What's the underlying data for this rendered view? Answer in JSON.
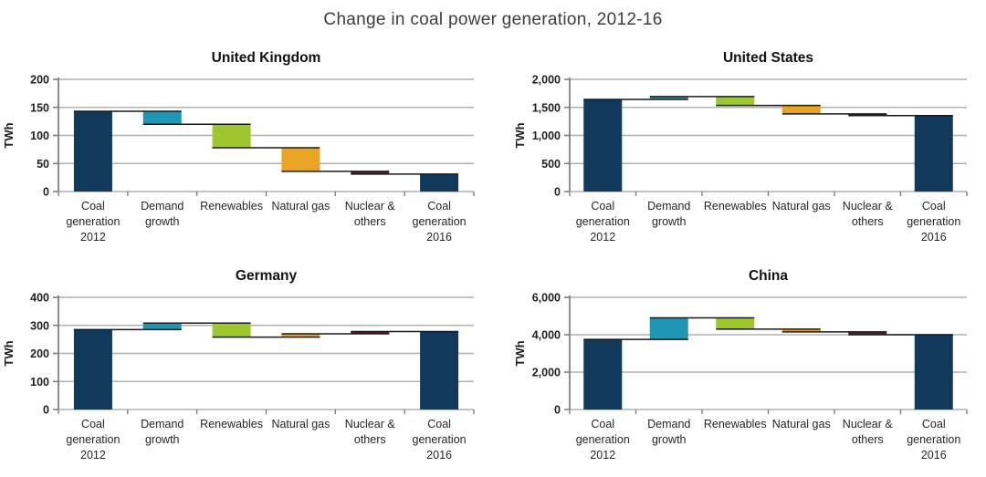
{
  "page_title": "Change in coal power generation, 2012-16",
  "unit": "TWh",
  "categories": [
    "Coal generation 2012",
    "Demand growth",
    "Renewables",
    "Natural gas",
    "Nuclear & others",
    "Coal generation 2016"
  ],
  "category_label_lines": [
    [
      "Coal",
      "generation",
      "2012"
    ],
    [
      "Demand",
      "growth"
    ],
    [
      "Renewables"
    ],
    [
      "Natural gas"
    ],
    [
      "Nuclear &",
      "others"
    ],
    [
      "Coal",
      "generation",
      "2016"
    ]
  ],
  "colors": {
    "coal": "#11395C",
    "demand": "#1E96B4",
    "renewables": "#9EC62E",
    "natural_gas": "#E9A424",
    "nuclear": "#631A26",
    "grid": "#B0B0B0",
    "axis": "#808080",
    "connector": "#1A1A1A",
    "tick_text": "#1F1F1F",
    "category_text": "#262626",
    "chart_title_text": "#111111"
  },
  "chart_data": [
    {
      "type": "waterfall",
      "title": "United Kingdom",
      "ylabel": "TWh",
      "ylim": [
        0,
        200
      ],
      "yticks": [
        {
          "v": 0,
          "label": "0"
        },
        {
          "v": 50,
          "label": "50"
        },
        {
          "v": 100,
          "label": "100"
        },
        {
          "v": 150,
          "label": "150"
        },
        {
          "v": 200,
          "label": "200"
        }
      ],
      "steps": [
        {
          "label": "Coal generation 2012",
          "start": 0,
          "end": 143,
          "color": "coal"
        },
        {
          "label": "Demand growth",
          "start": 143,
          "end": 120,
          "color": "demand"
        },
        {
          "label": "Renewables",
          "start": 120,
          "end": 78,
          "color": "renewables"
        },
        {
          "label": "Natural gas",
          "start": 78,
          "end": 36,
          "color": "natural_gas"
        },
        {
          "label": "Nuclear & others",
          "start": 36,
          "end": 31,
          "color": "nuclear"
        },
        {
          "label": "Coal generation 2016",
          "start": 0,
          "end": 31,
          "color": "coal"
        }
      ]
    },
    {
      "type": "waterfall",
      "title": "United States",
      "ylabel": "TWh",
      "ylim": [
        0,
        2000
      ],
      "yticks": [
        {
          "v": 0,
          "label": "0"
        },
        {
          "v": 500,
          "label": "500"
        },
        {
          "v": 1000,
          "label": "1,000"
        },
        {
          "v": 1500,
          "label": "1,500"
        },
        {
          "v": 2000,
          "label": "2,000"
        }
      ],
      "steps": [
        {
          "label": "Coal generation 2012",
          "start": 0,
          "end": 1643,
          "color": "coal"
        },
        {
          "label": "Demand growth",
          "start": 1643,
          "end": 1693,
          "color": "demand"
        },
        {
          "label": "Renewables",
          "start": 1693,
          "end": 1535,
          "color": "renewables"
        },
        {
          "label": "Natural gas",
          "start": 1535,
          "end": 1385,
          "color": "natural_gas"
        },
        {
          "label": "Nuclear & others",
          "start": 1385,
          "end": 1354,
          "color": "nuclear"
        },
        {
          "label": "Coal generation 2016",
          "start": 0,
          "end": 1354,
          "color": "coal"
        }
      ]
    },
    {
      "type": "waterfall",
      "title": "Germany",
      "ylabel": "TWh",
      "ylim": [
        0,
        400
      ],
      "yticks": [
        {
          "v": 0,
          "label": "0"
        },
        {
          "v": 100,
          "label": "100"
        },
        {
          "v": 200,
          "label": "200"
        },
        {
          "v": 300,
          "label": "300"
        },
        {
          "v": 400,
          "label": "400"
        }
      ],
      "steps": [
        {
          "label": "Coal generation 2012",
          "start": 0,
          "end": 285,
          "color": "coal"
        },
        {
          "label": "Demand growth",
          "start": 285,
          "end": 308,
          "color": "demand"
        },
        {
          "label": "Renewables",
          "start": 308,
          "end": 258,
          "color": "renewables"
        },
        {
          "label": "Natural gas",
          "start": 258,
          "end": 270,
          "color": "natural_gas"
        },
        {
          "label": "Nuclear & others",
          "start": 270,
          "end": 278,
          "color": "nuclear"
        },
        {
          "label": "Coal generation 2016",
          "start": 0,
          "end": 278,
          "color": "coal"
        }
      ]
    },
    {
      "type": "waterfall",
      "title": "China",
      "ylabel": "TWh",
      "ylim": [
        0,
        6000
      ],
      "yticks": [
        {
          "v": 0,
          "label": "0"
        },
        {
          "v": 2000,
          "label": "2,000"
        },
        {
          "v": 4000,
          "label": "4,000"
        },
        {
          "v": 6000,
          "label": "6,000"
        }
      ],
      "steps": [
        {
          "label": "Coal generation 2012",
          "start": 0,
          "end": 3750,
          "color": "coal"
        },
        {
          "label": "Demand growth",
          "start": 3750,
          "end": 4900,
          "color": "demand"
        },
        {
          "label": "Renewables",
          "start": 4900,
          "end": 4300,
          "color": "renewables"
        },
        {
          "label": "Natural gas",
          "start": 4300,
          "end": 4150,
          "color": "natural_gas"
        },
        {
          "label": "Nuclear & others",
          "start": 4150,
          "end": 4000,
          "color": "nuclear"
        },
        {
          "label": "Coal generation 2016",
          "start": 0,
          "end": 4000,
          "color": "coal"
        }
      ]
    }
  ]
}
